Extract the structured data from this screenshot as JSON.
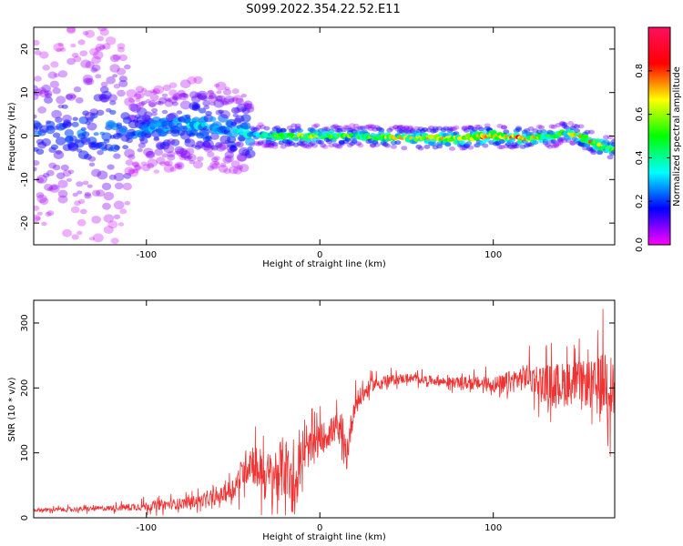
{
  "title": "S099.2022.354.22.52.E11",
  "chart_data": [
    {
      "type": "heatmap",
      "xlabel": "Height of straight line (km)",
      "ylabel": "Frequency (Hz)",
      "xlim": [
        -165,
        170
      ],
      "ylim": [
        -25,
        25
      ],
      "x_ticks": [
        -100,
        0,
        100
      ],
      "y_ticks": [
        -20,
        -10,
        0,
        10,
        20
      ],
      "grid": false,
      "colorbar": {
        "label": "Normalized spectral amplitude",
        "range": [
          0.0,
          1.0
        ],
        "ticks": [
          0.0,
          0.2,
          0.4,
          0.6,
          0.8
        ],
        "colormap": [
          "#ff00ff",
          "#0000ff",
          "#00ffff",
          "#00ff00",
          "#ffff00",
          "#ff0000",
          "#ff1060"
        ]
      },
      "ridge": {
        "x": [
          -165,
          -150,
          -130,
          -110,
          -90,
          -70,
          -55,
          -40,
          -30,
          -20,
          0,
          20,
          40,
          60,
          80,
          100,
          120,
          135,
          140,
          150,
          160,
          170
        ],
        "frequency": [
          0.5,
          0.5,
          0.5,
          1,
          2,
          3,
          2,
          0.5,
          0,
          0,
          0,
          0,
          -0.3,
          -0.5,
          -0.5,
          0,
          -0.5,
          0,
          1,
          0,
          -2,
          -3
        ],
        "amplitude": [
          0.2,
          0.2,
          0.25,
          0.25,
          0.3,
          0.35,
          0.3,
          0.35,
          0.5,
          0.7,
          0.6,
          0.55,
          0.6,
          0.75,
          0.75,
          0.8,
          0.75,
          0.5,
          0.55,
          0.7,
          0.75,
          0.6
        ]
      }
    },
    {
      "type": "line",
      "xlabel": "Height of straight line (km)",
      "ylabel": "SNR (10 * v/v)",
      "xlim": [
        -165,
        170
      ],
      "ylim": [
        0,
        335
      ],
      "x_ticks": [
        -100,
        0,
        100
      ],
      "y_ticks": [
        0,
        100,
        200,
        300
      ],
      "grid": false,
      "series": [
        {
          "color": "#ee3333",
          "x": [
            -165,
            -140,
            -120,
            -100,
            -80,
            -60,
            -50,
            -40,
            -30,
            -20,
            -15,
            -10,
            0,
            10,
            15,
            20,
            30,
            40,
            50,
            60,
            70,
            80,
            90,
            100,
            105,
            110,
            120,
            130,
            140,
            150,
            160,
            165,
            170
          ],
          "y": [
            12,
            13,
            15,
            18,
            22,
            30,
            45,
            90,
            60,
            80,
            40,
            95,
            120,
            140,
            90,
            175,
            205,
            212,
            215,
            213,
            210,
            208,
            207,
            206,
            200,
            210,
            218,
            208,
            205,
            210,
            200,
            215,
            195
          ],
          "noise": [
            4,
            5,
            6,
            10,
            12,
            15,
            25,
            45,
            60,
            70,
            60,
            40,
            35,
            30,
            40,
            25,
            15,
            12,
            10,
            10,
            10,
            12,
            15,
            18,
            30,
            25,
            30,
            40,
            50,
            45,
            60,
            80,
            60
          ]
        }
      ]
    }
  ]
}
